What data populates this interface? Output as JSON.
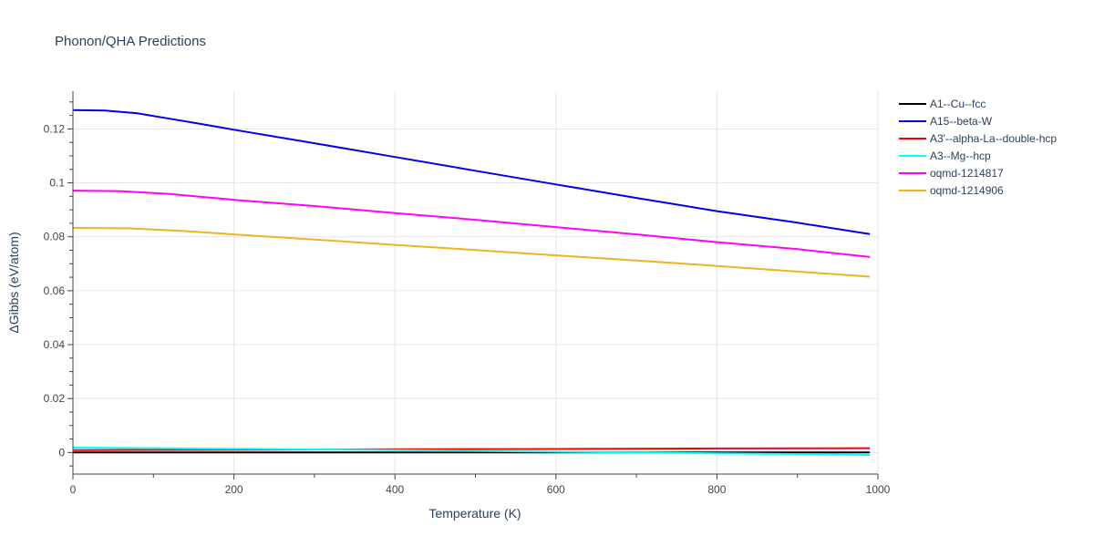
{
  "chart_data": {
    "type": "line",
    "title": "Phonon/QHA Predictions",
    "xlabel": "Temperature (K)",
    "ylabel": "ΔGibbs (eV/atom)",
    "xlim": [
      0,
      1000
    ],
    "ylim": [
      -0.008,
      0.134
    ],
    "xticks": [
      0,
      200,
      400,
      600,
      800,
      1000
    ],
    "yticks": [
      0,
      0.02,
      0.04,
      0.06,
      0.08,
      0.1,
      0.12
    ],
    "ytick_labels": [
      "0",
      "0.02",
      "0.04",
      "0.06",
      "0.08",
      "0.1",
      "0.12"
    ],
    "grid": true,
    "legend_position": "top-right",
    "series": [
      {
        "name": "A1--Cu--fcc",
        "color": "#000000",
        "x": [
          0,
          200,
          400,
          600,
          800,
          990
        ],
        "y": [
          0,
          0,
          0,
          0,
          0,
          0
        ]
      },
      {
        "name": "A15--beta-W",
        "color": "#0000ee",
        "x": [
          0,
          40,
          80,
          120,
          160,
          200,
          300,
          400,
          500,
          600,
          700,
          800,
          900,
          990
        ],
        "y": [
          0.127,
          0.1268,
          0.1258,
          0.1238,
          0.1218,
          0.1197,
          0.1147,
          0.1096,
          0.1045,
          0.0994,
          0.0944,
          0.0895,
          0.0852,
          0.081
        ]
      },
      {
        "name": "A3'--alpha-La--double-hcp",
        "color": "#ff0000",
        "x": [
          0,
          200,
          400,
          600,
          800,
          990
        ],
        "y": [
          0.0009,
          0.001,
          0.0012,
          0.0013,
          0.0015,
          0.0016
        ]
      },
      {
        "name": "A3--Mg--hcp",
        "color": "#00ffff",
        "x": [
          0,
          200,
          400,
          600,
          800,
          990
        ],
        "y": [
          0.0018,
          0.0014,
          0.0009,
          0.0003,
          -0.0003,
          -0.0009
        ]
      },
      {
        "name": "oqmd-1214817",
        "color": "#ff00ff",
        "x": [
          0,
          60,
          120,
          200,
          300,
          400,
          500,
          600,
          700,
          800,
          900,
          990
        ],
        "y": [
          0.0971,
          0.0969,
          0.0959,
          0.0937,
          0.0914,
          0.0888,
          0.0863,
          0.0836,
          0.0809,
          0.078,
          0.0754,
          0.0725
        ]
      },
      {
        "name": "oqmd-1214906",
        "color": "#eeb422",
        "x": [
          0,
          70,
          140,
          200,
          300,
          400,
          500,
          600,
          700,
          800,
          900,
          990
        ],
        "y": [
          0.0833,
          0.0831,
          0.0821,
          0.0809,
          0.079,
          0.077,
          0.0751,
          0.0731,
          0.0712,
          0.0692,
          0.0671,
          0.0652
        ]
      }
    ]
  }
}
